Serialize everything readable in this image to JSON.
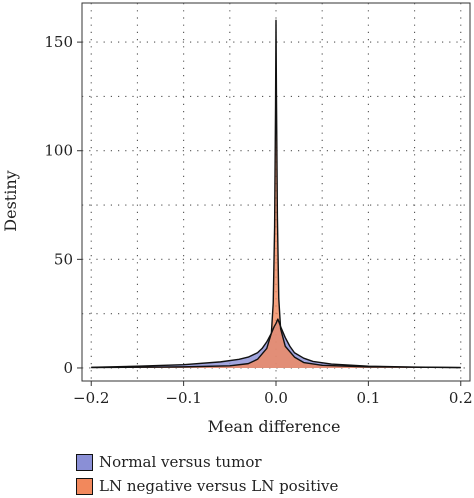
{
  "chart_data": {
    "type": "area",
    "xlabel": "Mean difference",
    "ylabel": "Destiny",
    "xlim": [
      -0.21,
      0.21
    ],
    "ylim": [
      -6,
      168
    ],
    "x_ticks": [
      -0.2,
      -0.1,
      0.0,
      0.1,
      0.2
    ],
    "x_tick_labels": [
      "−0.2",
      "−0.1",
      "0.0",
      "0.1",
      "0.2"
    ],
    "y_ticks": [
      0,
      50,
      100,
      150
    ],
    "y_tick_labels": [
      "0",
      "50",
      "100",
      "150"
    ],
    "grid": true,
    "legend_position": "bottom-left",
    "series": [
      {
        "name": "Normal versus tumor",
        "color": "#8a8fd6",
        "x": [
          -0.2,
          -0.15,
          -0.1,
          -0.06,
          -0.04,
          -0.03,
          -0.02,
          -0.015,
          -0.01,
          -0.005,
          -0.002,
          0.0,
          0.002,
          0.005,
          0.01,
          0.015,
          0.02,
          0.03,
          0.04,
          0.06,
          0.1,
          0.15,
          0.2
        ],
        "y": [
          0.3,
          0.8,
          1.5,
          2.8,
          4.0,
          5.0,
          7.0,
          9.0,
          12.0,
          16.0,
          19.0,
          20.5,
          22.5,
          19.0,
          14.0,
          10.0,
          7.0,
          4.5,
          3.0,
          1.8,
          0.8,
          0.4,
          0.2
        ]
      },
      {
        "name": "LN negative versus LN positive",
        "color": "#f2885c",
        "x": [
          -0.2,
          -0.1,
          -0.05,
          -0.03,
          -0.02,
          -0.01,
          -0.005,
          -0.003,
          -0.0015,
          -0.0005,
          0.0,
          0.0005,
          0.0015,
          0.003,
          0.005,
          0.01,
          0.02,
          0.03,
          0.05,
          0.1,
          0.2
        ],
        "y": [
          0.2,
          0.5,
          1.0,
          2.0,
          4.0,
          9.0,
          16.0,
          30.0,
          65.0,
          120.0,
          160.0,
          125.0,
          70.0,
          32.0,
          18.0,
          10.0,
          5.0,
          2.5,
          1.2,
          0.5,
          0.2
        ]
      }
    ]
  }
}
